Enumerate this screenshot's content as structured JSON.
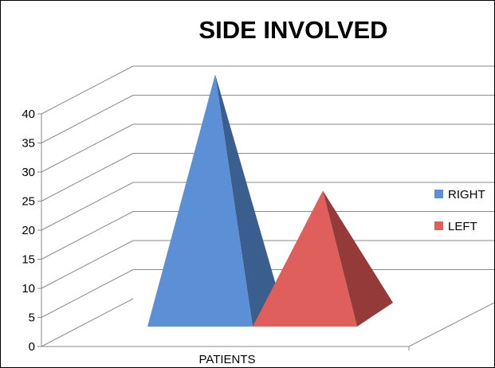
{
  "chart_data": {
    "type": "bar",
    "shape": "3d-pyramid",
    "title": "SIDE INVOLVED",
    "categories": [
      "PATIENTS"
    ],
    "series": [
      {
        "name": "RIGHT",
        "values": [
          42
        ],
        "color": "#5b8fd6",
        "dark": "#3a5f8e"
      },
      {
        "name": "LEFT",
        "values": [
          22
        ],
        "color": "#de5f5b",
        "dark": "#943a38"
      }
    ],
    "yticks": [
      "0",
      "5",
      "10",
      "15",
      "20",
      "25",
      "30",
      "35",
      "40"
    ],
    "ylim": [
      0,
      40
    ],
    "grid": true,
    "legend_position": "right"
  }
}
